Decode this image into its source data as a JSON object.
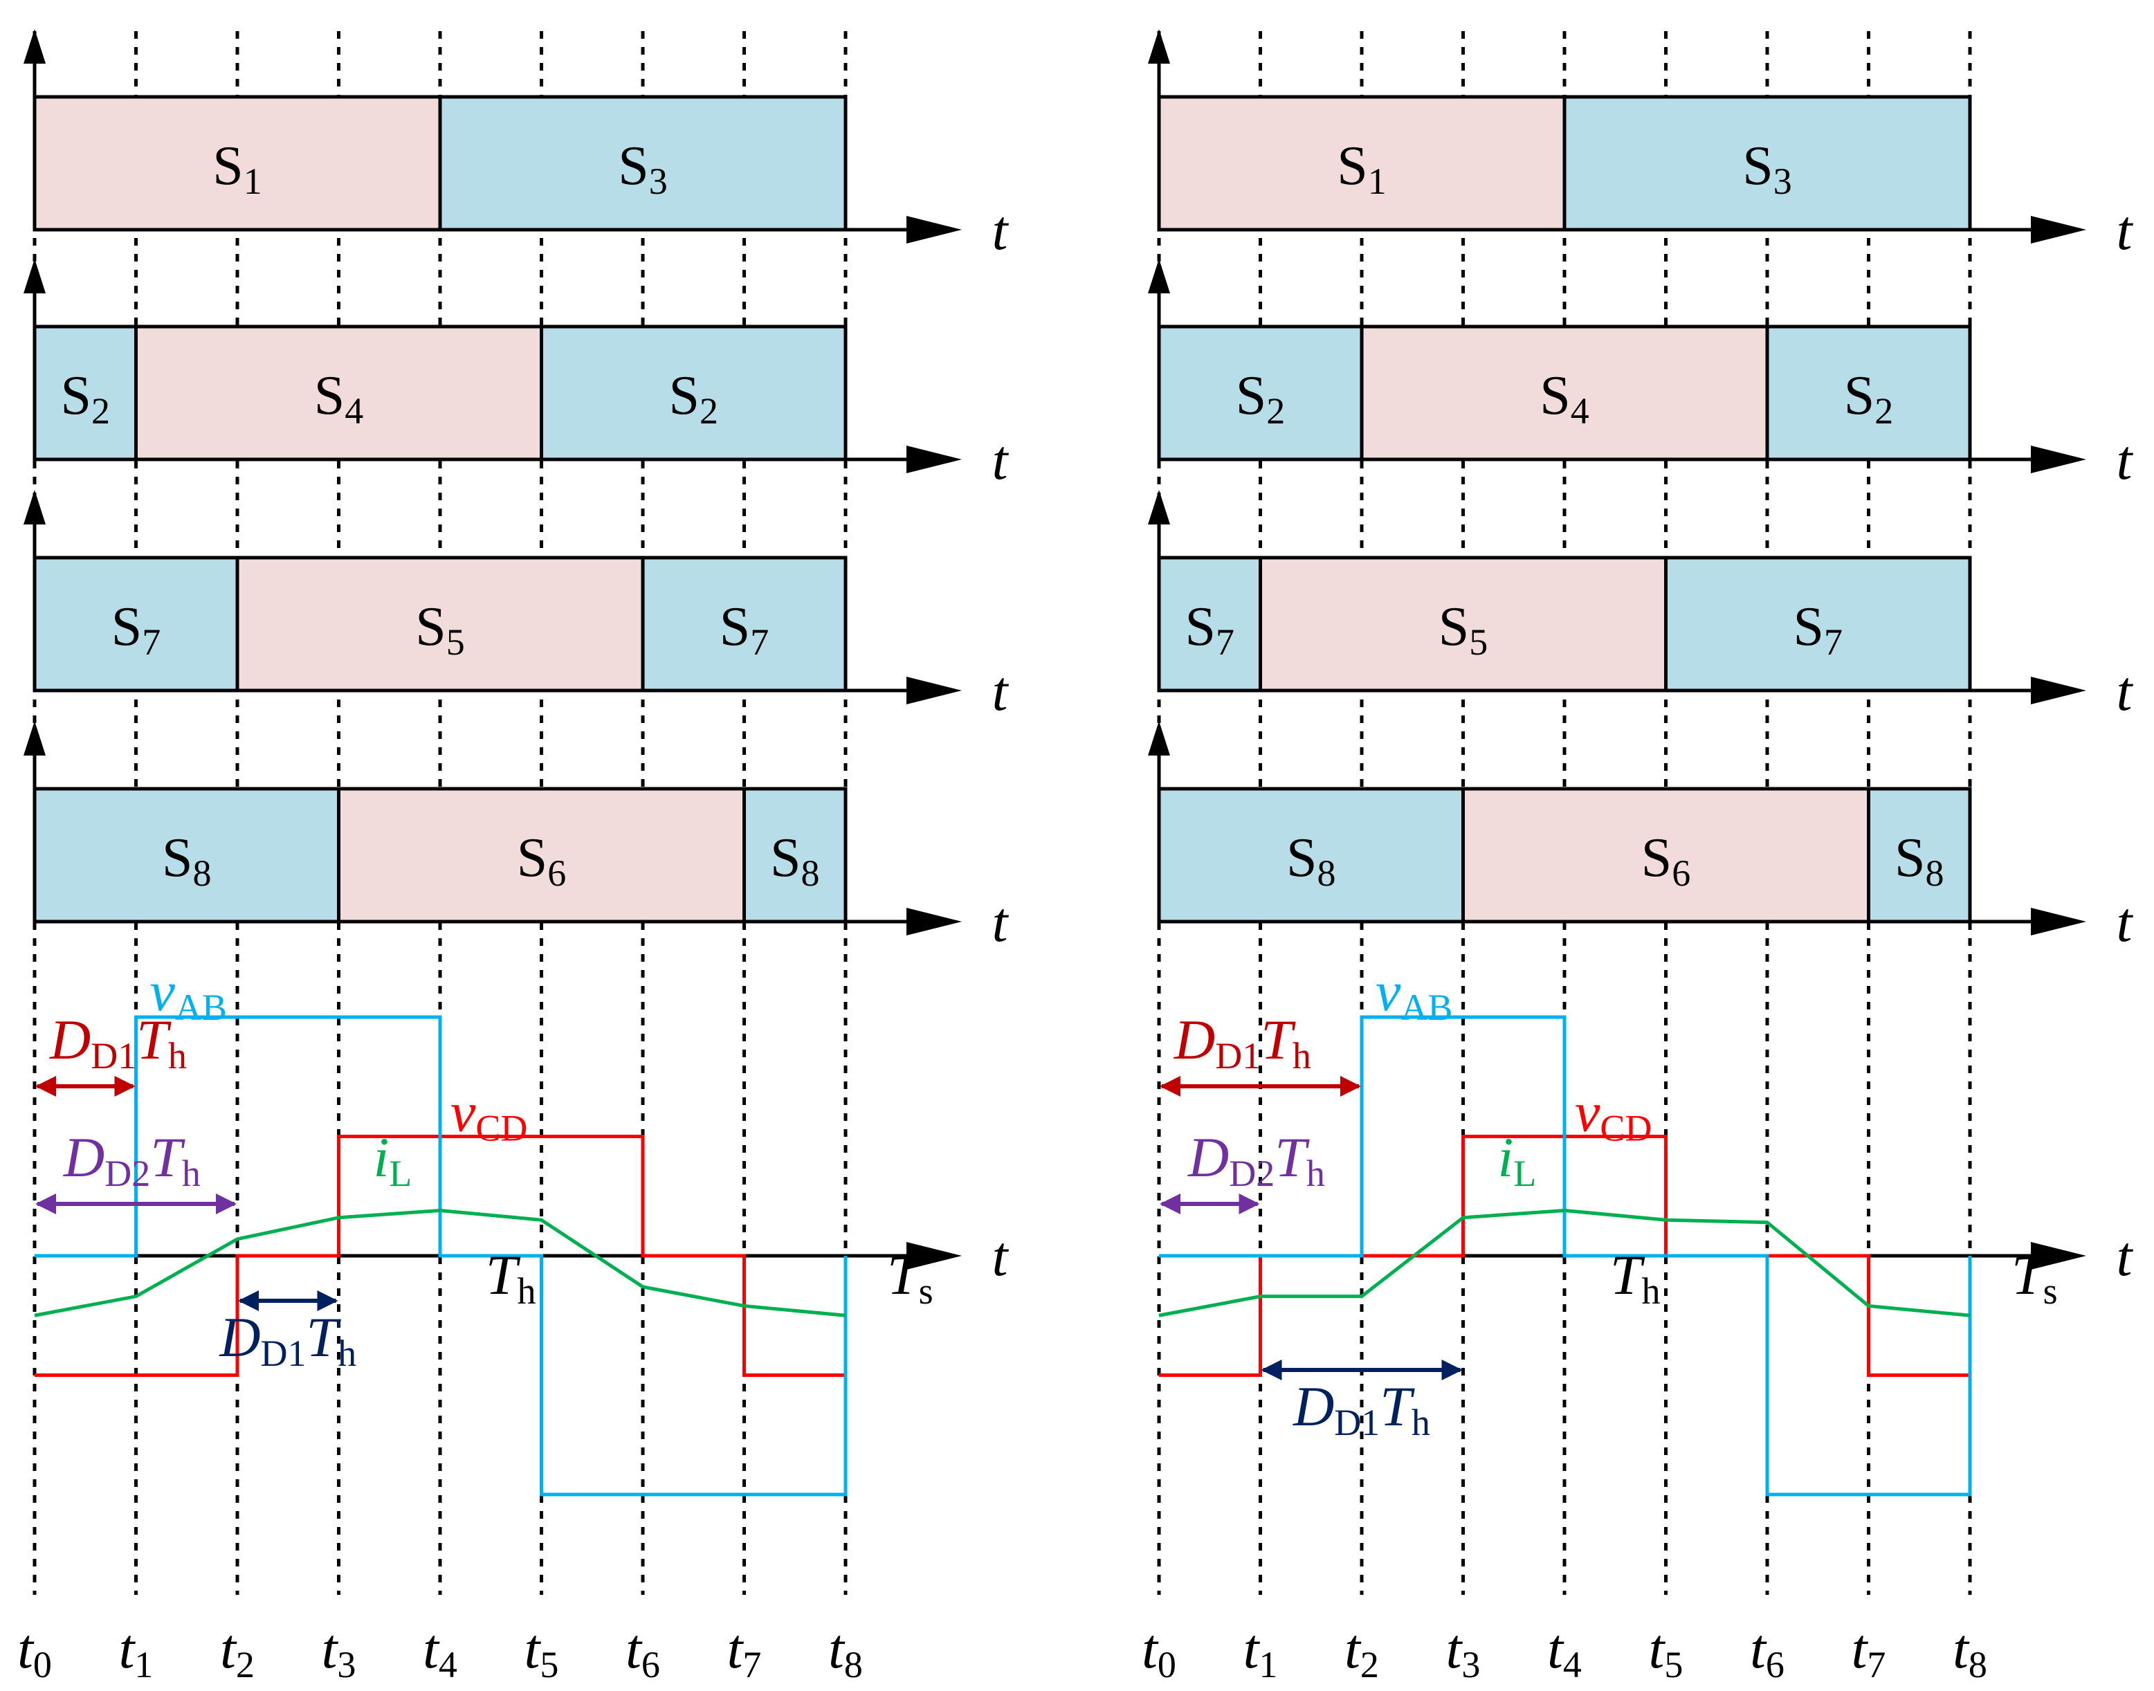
{
  "colors": {
    "pink": "#f2dcdb",
    "blue": "#b7dde8",
    "outline": "#000000",
    "vab": "#00b0f0",
    "vcd": "#ff0000",
    "il": "#00b050",
    "red_label": "#c00000",
    "purple_label": "#7030a0",
    "navy_label": "#002060"
  },
  "axis_label": "t",
  "panels": [
    {
      "rows": [
        [
          {
            "base": "S",
            "sub": "1",
            "from": 0,
            "to": 4,
            "fill": "pink"
          },
          {
            "base": "S",
            "sub": "3",
            "from": 4,
            "to": 8,
            "fill": "blue"
          }
        ],
        [
          {
            "base": "S",
            "sub": "2",
            "from": 0,
            "to": 1,
            "fill": "blue"
          },
          {
            "base": "S",
            "sub": "4",
            "from": 1,
            "to": 5,
            "fill": "pink"
          },
          {
            "base": "S",
            "sub": "2",
            "from": 5,
            "to": 8,
            "fill": "blue"
          }
        ],
        [
          {
            "base": "S",
            "sub": "7",
            "from": 0,
            "to": 2,
            "fill": "blue"
          },
          {
            "base": "S",
            "sub": "5",
            "from": 2,
            "to": 6,
            "fill": "pink"
          },
          {
            "base": "S",
            "sub": "7",
            "from": 6,
            "to": 8,
            "fill": "blue"
          }
        ],
        [
          {
            "base": "S",
            "sub": "8",
            "from": 0,
            "to": 3,
            "fill": "blue"
          },
          {
            "base": "S",
            "sub": "6",
            "from": 3,
            "to": 7,
            "fill": "pink"
          },
          {
            "base": "S",
            "sub": "8",
            "from": 7,
            "to": 8,
            "fill": "blue"
          }
        ]
      ],
      "vab": [
        [
          0,
          0
        ],
        [
          1,
          0
        ],
        [
          1,
          1
        ],
        [
          4,
          1
        ],
        [
          4,
          0
        ],
        [
          5,
          0
        ],
        [
          5,
          -1
        ],
        [
          8,
          -1
        ],
        [
          8,
          0
        ]
      ],
      "vcd": [
        [
          0,
          -0.5
        ],
        [
          2,
          -0.5
        ],
        [
          2,
          0
        ],
        [
          3,
          0
        ],
        [
          3,
          0.5
        ],
        [
          6,
          0.5
        ],
        [
          6,
          0
        ],
        [
          7,
          0
        ],
        [
          7,
          -0.5
        ],
        [
          8,
          -0.5
        ]
      ],
      "il": [
        [
          0,
          -0.25
        ],
        [
          1,
          -0.17
        ],
        [
          2,
          0.07
        ],
        [
          3,
          0.16
        ],
        [
          4,
          0.19
        ],
        [
          5,
          0.15
        ],
        [
          6,
          -0.13
        ],
        [
          7,
          -0.21
        ],
        [
          8,
          -0.25
        ]
      ],
      "labels": {
        "vab": {
          "base": "v",
          "sub": "AB"
        },
        "vcd": {
          "base": "v",
          "sub": "CD"
        },
        "il": {
          "base": "i",
          "sub": "L"
        },
        "dd1_top": {
          "base": "D",
          "sub": "D1",
          "tail": "T",
          "tail_sub": "h"
        },
        "dd2": {
          "base": "D",
          "sub": "D2",
          "tail": "T",
          "tail_sub": "h"
        },
        "dd1_bottom": {
          "base": "D",
          "sub": "D1",
          "tail": "T",
          "tail_sub": "h"
        },
        "th": {
          "base": "T",
          "sub": "h"
        },
        "ts": {
          "base": "T",
          "sub": "s"
        }
      },
      "arrows": {
        "dd1_top": [
          0,
          1
        ],
        "dd2": [
          0,
          2
        ],
        "dd1_bottom": [
          2,
          3
        ]
      }
    },
    {
      "rows": [
        [
          {
            "base": "S",
            "sub": "1",
            "from": 0,
            "to": 4,
            "fill": "pink"
          },
          {
            "base": "S",
            "sub": "3",
            "from": 4,
            "to": 8,
            "fill": "blue"
          }
        ],
        [
          {
            "base": "S",
            "sub": "2",
            "from": 0,
            "to": 2,
            "fill": "blue"
          },
          {
            "base": "S",
            "sub": "4",
            "from": 2,
            "to": 6,
            "fill": "pink"
          },
          {
            "base": "S",
            "sub": "2",
            "from": 6,
            "to": 8,
            "fill": "blue"
          }
        ],
        [
          {
            "base": "S",
            "sub": "7",
            "from": 0,
            "to": 1,
            "fill": "blue"
          },
          {
            "base": "S",
            "sub": "5",
            "from": 1,
            "to": 5,
            "fill": "pink"
          },
          {
            "base": "S",
            "sub": "7",
            "from": 5,
            "to": 8,
            "fill": "blue"
          }
        ],
        [
          {
            "base": "S",
            "sub": "8",
            "from": 0,
            "to": 3,
            "fill": "blue"
          },
          {
            "base": "S",
            "sub": "6",
            "from": 3,
            "to": 7,
            "fill": "pink"
          },
          {
            "base": "S",
            "sub": "8",
            "from": 7,
            "to": 8,
            "fill": "blue"
          }
        ]
      ],
      "vab": [
        [
          0,
          0
        ],
        [
          2,
          0
        ],
        [
          2,
          1
        ],
        [
          4,
          1
        ],
        [
          4,
          0
        ],
        [
          6,
          0
        ],
        [
          6,
          -1
        ],
        [
          8,
          -1
        ],
        [
          8,
          0
        ]
      ],
      "vcd": [
        [
          0,
          -0.5
        ],
        [
          1,
          -0.5
        ],
        [
          1,
          0
        ],
        [
          3,
          0
        ],
        [
          3,
          0.5
        ],
        [
          5,
          0.5
        ],
        [
          5,
          0
        ],
        [
          7,
          0
        ],
        [
          7,
          -0.5
        ],
        [
          8,
          -0.5
        ]
      ],
      "il": [
        [
          0,
          -0.25
        ],
        [
          1,
          -0.17
        ],
        [
          2,
          -0.17
        ],
        [
          3,
          0.16
        ],
        [
          4,
          0.19
        ],
        [
          5,
          0.15
        ],
        [
          6,
          0.14
        ],
        [
          7,
          -0.21
        ],
        [
          8,
          -0.25
        ]
      ],
      "labels": {
        "vab": {
          "base": "v",
          "sub": "AB"
        },
        "vcd": {
          "base": "v",
          "sub": "CD"
        },
        "il": {
          "base": "i",
          "sub": "L"
        },
        "dd1_top": {
          "base": "D",
          "sub": "D1",
          "tail": "T",
          "tail_sub": "h"
        },
        "dd2": {
          "base": "D",
          "sub": "D2",
          "tail": "T",
          "tail_sub": "h"
        },
        "dd1_bottom": {
          "base": "D",
          "sub": "D1",
          "tail": "T",
          "tail_sub": "h"
        },
        "th": {
          "base": "T",
          "sub": "h"
        },
        "ts": {
          "base": "T",
          "sub": "s"
        }
      },
      "arrows": {
        "dd1_top": [
          0,
          2
        ],
        "dd2": [
          0,
          1
        ],
        "dd1_bottom": [
          1,
          3
        ]
      }
    }
  ],
  "time_labels": [
    {
      "base": "t",
      "sub": "0"
    },
    {
      "base": "t",
      "sub": "1"
    },
    {
      "base": "t",
      "sub": "2"
    },
    {
      "base": "t",
      "sub": "3"
    },
    {
      "base": "t",
      "sub": "4"
    },
    {
      "base": "t",
      "sub": "5"
    },
    {
      "base": "t",
      "sub": "6"
    },
    {
      "base": "t",
      "sub": "7"
    },
    {
      "base": "t",
      "sub": "8"
    }
  ]
}
